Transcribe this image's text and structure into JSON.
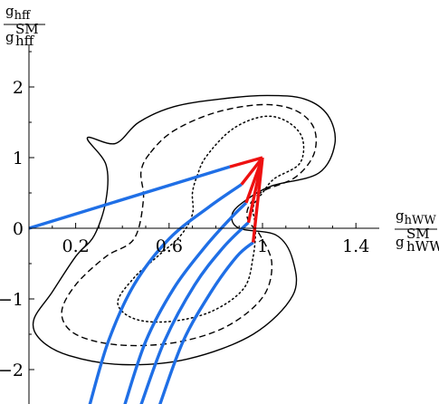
{
  "chart_data": {
    "type": "line",
    "x_axis": {
      "label_num_base": "g",
      "label_num_sub": "hWW",
      "label_den_base": "g",
      "label_den_sup": "SM",
      "label_den_sub": "hWW",
      "range": [
        0.0,
        1.5
      ],
      "ticks": [
        0.2,
        0.6,
        1.0,
        1.4
      ],
      "tick_labels": [
        "0.2",
        "0.6",
        "1",
        "1.4"
      ]
    },
    "y_axis": {
      "label_num_base": "g",
      "label_num_sub": "hff",
      "label_den_base": "g",
      "label_den_sup": "SM",
      "label_den_sub": "hff",
      "range": [
        -2.5,
        2.6
      ],
      "ticks": [
        -2,
        -1,
        0,
        1,
        2
      ],
      "tick_labels": [
        "−2",
        "−1",
        "0",
        "1",
        "2"
      ]
    },
    "colors": {
      "contours": "#000000",
      "blue": "#1f6fe6",
      "red": "#ee1111"
    },
    "grid": false,
    "legend": "none",
    "series": [
      {
        "style": "solid",
        "color": "#000000",
        "closed": true,
        "points": [
          [
            0.37,
            1.2
          ],
          [
            0.47,
            1.5
          ],
          [
            0.62,
            1.72
          ],
          [
            0.82,
            1.83
          ],
          [
            1.02,
            1.88
          ],
          [
            1.18,
            1.83
          ],
          [
            1.28,
            1.6
          ],
          [
            1.31,
            1.2
          ],
          [
            1.24,
            0.78
          ],
          [
            1.04,
            0.6
          ],
          [
            0.93,
            0.4
          ],
          [
            0.87,
            0.2
          ],
          [
            0.9,
            0.0
          ],
          [
            1.06,
            -0.1
          ],
          [
            1.13,
            -0.45
          ],
          [
            1.13,
            -0.95
          ],
          [
            0.96,
            -1.5
          ],
          [
            0.68,
            -1.85
          ],
          [
            0.4,
            -1.93
          ],
          [
            0.17,
            -1.8
          ],
          [
            0.05,
            -1.58
          ],
          [
            0.02,
            -1.3
          ],
          [
            0.1,
            -0.9
          ],
          [
            0.2,
            -0.4
          ],
          [
            0.28,
            -0.1
          ],
          [
            0.33,
            0.4
          ],
          [
            0.33,
            0.9
          ],
          [
            0.25,
            1.28
          ]
        ]
      },
      {
        "style": "dashed",
        "color": "#000000",
        "closed": true,
        "points": [
          [
            0.52,
            1.07
          ],
          [
            0.62,
            1.38
          ],
          [
            0.8,
            1.64
          ],
          [
            1.0,
            1.75
          ],
          [
            1.14,
            1.67
          ],
          [
            1.22,
            1.42
          ],
          [
            1.22,
            1.05
          ],
          [
            1.14,
            0.72
          ],
          [
            1.0,
            0.52
          ],
          [
            0.94,
            0.3
          ],
          [
            0.94,
            0.1
          ],
          [
            0.99,
            -0.1
          ],
          [
            1.04,
            -0.5
          ],
          [
            1.0,
            -0.98
          ],
          [
            0.84,
            -1.4
          ],
          [
            0.62,
            -1.62
          ],
          [
            0.38,
            -1.65
          ],
          [
            0.2,
            -1.5
          ],
          [
            0.14,
            -1.2
          ],
          [
            0.2,
            -0.8
          ],
          [
            0.33,
            -0.4
          ],
          [
            0.45,
            -0.15
          ],
          [
            0.49,
            0.4
          ],
          [
            0.48,
            0.8
          ]
        ]
      },
      {
        "style": "dotted",
        "color": "#000000",
        "closed": true,
        "points": [
          [
            0.72,
            0.74
          ],
          [
            0.76,
            1.02
          ],
          [
            0.87,
            1.4
          ],
          [
            1.0,
            1.58
          ],
          [
            1.1,
            1.52
          ],
          [
            1.17,
            1.28
          ],
          [
            1.16,
            0.92
          ],
          [
            1.05,
            0.7
          ],
          [
            1.0,
            0.5
          ],
          [
            0.96,
            0.3
          ],
          [
            0.97,
            0.0
          ],
          [
            0.96,
            -0.4
          ],
          [
            0.92,
            -0.85
          ],
          [
            0.78,
            -1.18
          ],
          [
            0.6,
            -1.32
          ],
          [
            0.45,
            -1.28
          ],
          [
            0.38,
            -1.05
          ],
          [
            0.45,
            -0.7
          ],
          [
            0.55,
            -0.4
          ],
          [
            0.65,
            -0.1
          ],
          [
            0.7,
            0.2
          ],
          [
            0.7,
            0.5
          ]
        ]
      },
      {
        "style": "solid",
        "color": "#1f6fe6",
        "points": [
          [
            0.0,
            0.0
          ],
          [
            0.86,
            0.87
          ]
        ]
      },
      {
        "style": "solid",
        "color": "#ee1111",
        "points": [
          [
            0.86,
            0.87
          ],
          [
            1.0,
            1.0
          ]
        ]
      },
      {
        "style": "solid",
        "color": "#1f6fe6",
        "points": [
          [
            0.26,
            -2.5
          ],
          [
            0.34,
            -1.6
          ],
          [
            0.45,
            -0.8
          ],
          [
            0.6,
            -0.15
          ],
          [
            0.77,
            0.3
          ],
          [
            0.91,
            0.62
          ]
        ]
      },
      {
        "style": "solid",
        "color": "#ee1111",
        "points": [
          [
            0.91,
            0.62
          ],
          [
            1.0,
            1.0
          ]
        ]
      },
      {
        "style": "solid",
        "color": "#1f6fe6",
        "points": [
          [
            0.41,
            -2.5
          ],
          [
            0.5,
            -1.6
          ],
          [
            0.62,
            -0.85
          ],
          [
            0.75,
            -0.28
          ],
          [
            0.86,
            0.13
          ],
          [
            0.93,
            0.36
          ]
        ]
      },
      {
        "style": "solid",
        "color": "#ee1111",
        "points": [
          [
            0.93,
            0.36
          ],
          [
            1.0,
            1.0
          ]
        ]
      },
      {
        "style": "solid",
        "color": "#1f6fe6",
        "points": [
          [
            0.48,
            -2.5
          ],
          [
            0.58,
            -1.6
          ],
          [
            0.71,
            -0.8
          ],
          [
            0.83,
            -0.28
          ],
          [
            0.92,
            0.02
          ],
          [
            0.94,
            0.08
          ]
        ]
      },
      {
        "style": "solid",
        "color": "#ee1111",
        "points": [
          [
            0.94,
            0.08
          ],
          [
            1.0,
            1.0
          ]
        ]
      },
      {
        "style": "solid",
        "color": "#1f6fe6",
        "points": [
          [
            0.56,
            -2.5
          ],
          [
            0.66,
            -1.6
          ],
          [
            0.78,
            -0.9
          ],
          [
            0.89,
            -0.4
          ],
          [
            0.96,
            -0.2
          ]
        ]
      },
      {
        "style": "solid",
        "color": "#ee1111",
        "points": [
          [
            0.96,
            -0.2
          ],
          [
            1.0,
            1.0
          ]
        ]
      }
    ]
  }
}
